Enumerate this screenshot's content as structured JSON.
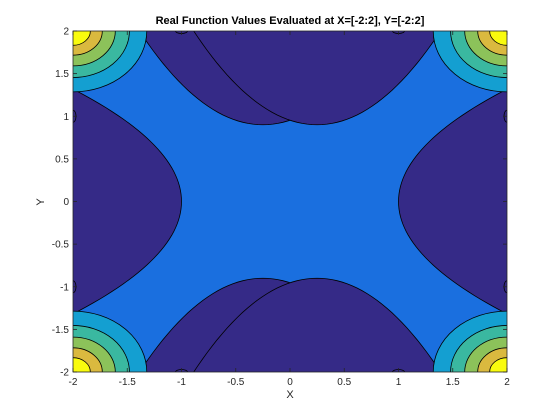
{
  "chart_data": {
    "type": "contour",
    "title": "Real Function Values Evaluated at X=[-2:2], Y=[-2:2]",
    "xlabel": "X",
    "ylabel": "Y",
    "xlim": [
      -2,
      2
    ],
    "ylim": [
      -2,
      2
    ],
    "xticks": [
      -2,
      -1.5,
      -1,
      -0.5,
      0,
      0.5,
      1,
      1.5,
      2
    ],
    "xtick_labels": [
      "-2",
      "-1.5",
      "-1",
      "-0.5",
      "0",
      "0.5",
      "1",
      "1.5",
      "2"
    ],
    "yticks": [
      -2,
      -1.5,
      -1,
      -0.5,
      0,
      0.5,
      1,
      1.5,
      2
    ],
    "ytick_labels": [
      "-2",
      "-1.5",
      "-1",
      "-0.5",
      "0",
      "0.5",
      "1",
      "1.5",
      "2"
    ],
    "grid": false,
    "filled": true,
    "colors": {
      "level_low": "#352a87",
      "level_mid": "#1a6fdf",
      "level_3": "#149fd1",
      "level_4": "#3ab8a0",
      "level_5": "#8cc25a",
      "level_6": "#dab93f",
      "level_high": "#f9fb0e",
      "contour_line": "#000000"
    }
  }
}
